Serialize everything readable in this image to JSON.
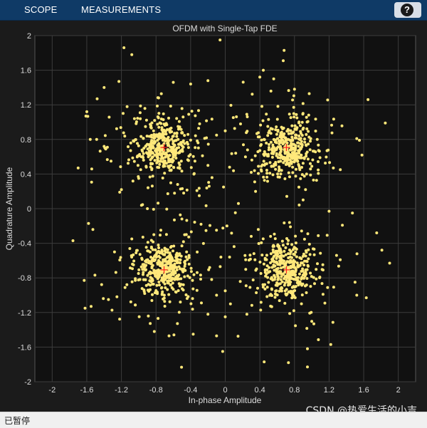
{
  "toolbar": {
    "tabs": [
      {
        "label": "SCOPE"
      },
      {
        "label": "MEASUREMENTS"
      }
    ],
    "help_label": "?"
  },
  "status": {
    "text": "已暂停"
  },
  "watermark": {
    "text": "CSDN @热爱生活的小吉"
  },
  "colors": {
    "point": "#ffe87a",
    "reference_marker": "#ff2020",
    "background": "#111111",
    "grid": "#3c3c3c",
    "text": "#dcdcdc"
  },
  "chart_data": {
    "type": "scatter",
    "title": "OFDM with Single-Tap FDE",
    "xlabel": "In-phase Amplitude",
    "ylabel": "Quadrature Amplitude",
    "xlim": [
      -2.2,
      2.2
    ],
    "ylim": [
      -2,
      2
    ],
    "xticks": [
      -2,
      -1.6,
      -1.2,
      -0.8,
      -0.4,
      0,
      0.4,
      0.8,
      1.2,
      1.6,
      2
    ],
    "xtick_labels": [
      "-2",
      "-1.6",
      "-1.2",
      "-0.8",
      "-0.4",
      "0",
      "0.4",
      "0.8",
      "1.2",
      "1.6",
      "2"
    ],
    "yticks": [
      2,
      1.6,
      1.2,
      0.8,
      0.4,
      0,
      -0.4,
      -0.8,
      -1.2,
      -1.6,
      -2
    ],
    "ytick_labels": [
      "2",
      "1.6",
      "1.2",
      "0.8",
      "0.4",
      "0",
      "-0.4",
      "-0.8",
      "-1.2",
      "-1.6",
      "-2"
    ],
    "grid": true,
    "reference_points": [
      {
        "x": -0.707,
        "y": 0.707
      },
      {
        "x": 0.707,
        "y": 0.707
      },
      {
        "x": -0.707,
        "y": -0.707
      },
      {
        "x": 0.707,
        "y": -0.707
      }
    ],
    "clusters": [
      {
        "cx": -0.72,
        "cy": 0.71,
        "spread": 0.16,
        "count": 420
      },
      {
        "cx": 0.71,
        "cy": 0.7,
        "spread": 0.16,
        "count": 420
      },
      {
        "cx": -0.71,
        "cy": -0.7,
        "spread": 0.16,
        "count": 420
      },
      {
        "cx": 0.71,
        "cy": -0.7,
        "spread": 0.16,
        "count": 420
      }
    ],
    "outliers": [
      {
        "x": -1.17,
        "y": 1.86
      },
      {
        "x": -1.08,
        "y": 1.78
      },
      {
        "x": -0.06,
        "y": 1.95
      },
      {
        "x": 0.68,
        "y": 1.83
      },
      {
        "x": 0.67,
        "y": 1.71
      },
      {
        "x": 0.44,
        "y": 1.6
      },
      {
        "x": 0.56,
        "y": 1.5
      },
      {
        "x": -1.4,
        "y": 1.4
      },
      {
        "x": -1.48,
        "y": 1.27
      },
      {
        "x": 0.4,
        "y": 1.52
      },
      {
        "x": -0.6,
        "y": 1.46
      },
      {
        "x": -0.4,
        "y": 1.44
      },
      {
        "x": -0.2,
        "y": 1.48
      },
      {
        "x": 0.8,
        "y": 1.38
      },
      {
        "x": 1.65,
        "y": 1.26
      },
      {
        "x": -1.6,
        "y": 1.12
      },
      {
        "x": -1.61,
        "y": 1.07
      },
      {
        "x": -1.18,
        "y": 1.1
      },
      {
        "x": 1.85,
        "y": 0.99
      },
      {
        "x": 1.52,
        "y": 0.81
      },
      {
        "x": 1.55,
        "y": 0.79
      },
      {
        "x": -1.56,
        "y": 0.8
      },
      {
        "x": -1.4,
        "y": 0.72
      },
      {
        "x": -1.7,
        "y": 0.47
      },
      {
        "x": -1.32,
        "y": 0.55
      },
      {
        "x": 1.33,
        "y": 0.45
      },
      {
        "x": 1.58,
        "y": 0.62
      },
      {
        "x": -1.22,
        "y": 0.19
      },
      {
        "x": -1.2,
        "y": 0.22
      },
      {
        "x": -0.02,
        "y": 0.25
      },
      {
        "x": -0.3,
        "y": 0.15
      },
      {
        "x": 0.9,
        "y": 0.1
      },
      {
        "x": 1.2,
        "y": -0.03
      },
      {
        "x": -0.9,
        "y": 0.0
      },
      {
        "x": 1.47,
        "y": -0.05
      },
      {
        "x": -1.58,
        "y": -0.17
      },
      {
        "x": -1.53,
        "y": -0.24
      },
      {
        "x": 0.02,
        "y": -0.2
      },
      {
        "x": 1.75,
        "y": -0.28
      },
      {
        "x": -1.76,
        "y": -0.37
      },
      {
        "x": 1.81,
        "y": -0.48
      },
      {
        "x": -1.28,
        "y": -0.5
      },
      {
        "x": -0.05,
        "y": -0.56
      },
      {
        "x": 0.05,
        "y": -0.56
      },
      {
        "x": -0.18,
        "y": -0.68
      },
      {
        "x": 1.9,
        "y": -0.63
      },
      {
        "x": 1.5,
        "y": -0.85
      },
      {
        "x": -1.63,
        "y": -0.83
      },
      {
        "x": 1.52,
        "y": -1.0
      },
      {
        "x": 1.63,
        "y": -1.03
      },
      {
        "x": -1.35,
        "y": -1.05
      },
      {
        "x": 0.0,
        "y": -0.95
      },
      {
        "x": -0.1,
        "y": -1.0
      },
      {
        "x": 0.06,
        "y": -1.1
      },
      {
        "x": -1.62,
        "y": -1.15
      },
      {
        "x": -1.55,
        "y": -1.13
      },
      {
        "x": 0.25,
        "y": -1.22
      },
      {
        "x": -0.2,
        "y": -1.22
      },
      {
        "x": 0.0,
        "y": -1.25
      },
      {
        "x": -0.82,
        "y": -1.42
      },
      {
        "x": -0.65,
        "y": -1.47
      },
      {
        "x": -0.37,
        "y": -1.45
      },
      {
        "x": -0.1,
        "y": -1.47
      },
      {
        "x": -0.03,
        "y": -1.65
      },
      {
        "x": 0.95,
        "y": -1.62
      },
      {
        "x": 1.22,
        "y": -1.57
      },
      {
        "x": 0.45,
        "y": -1.77
      },
      {
        "x": 0.73,
        "y": -1.78
      },
      {
        "x": 0.95,
        "y": -1.83
      },
      {
        "x": -0.35,
        "y": 0.55
      },
      {
        "x": -0.2,
        "y": 0.5
      },
      {
        "x": 0.05,
        "y": 0.48
      },
      {
        "x": 0.3,
        "y": 0.42
      },
      {
        "x": -0.1,
        "y": 0.85
      },
      {
        "x": 0.0,
        "y": 0.9
      },
      {
        "x": -0.55,
        "y": 0.28
      },
      {
        "x": -0.48,
        "y": 0.18
      },
      {
        "x": 0.35,
        "y": 0.2
      },
      {
        "x": -0.45,
        "y": -0.3
      },
      {
        "x": 0.3,
        "y": -0.32
      },
      {
        "x": -0.28,
        "y": -0.18
      },
      {
        "x": -1.08,
        "y": -0.35
      },
      {
        "x": -1.0,
        "y": 0.35
      },
      {
        "x": 1.02,
        "y": 0.33
      }
    ]
  }
}
